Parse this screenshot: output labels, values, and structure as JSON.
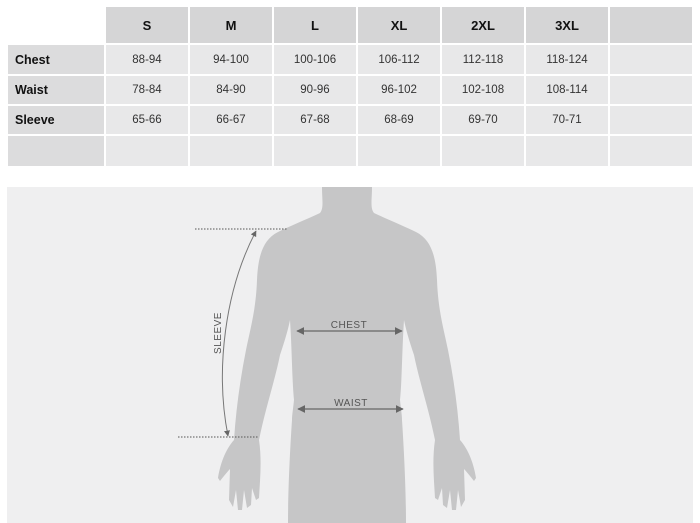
{
  "table": {
    "columns": [
      "S",
      "M",
      "L",
      "XL",
      "2XL",
      "3XL",
      ""
    ],
    "rows": [
      {
        "label": "Chest",
        "values": [
          "88-94",
          "94-100",
          "100-106",
          "106-112",
          "112-118",
          "118-124",
          ""
        ]
      },
      {
        "label": "Waist",
        "values": [
          "78-84",
          "84-90",
          "90-96",
          "96-102",
          "102-108",
          "108-114",
          ""
        ]
      },
      {
        "label": "Sleeve",
        "values": [
          "65-66",
          "66-67",
          "67-68",
          "68-69",
          "69-70",
          "70-71",
          ""
        ]
      },
      {
        "label": "",
        "values": [
          "",
          "",
          "",
          "",
          "",
          "",
          ""
        ]
      }
    ]
  },
  "diagram": {
    "chest_label": "CHEST",
    "waist_label": "WAIST",
    "sleeve_label": "SLEEVE"
  },
  "colors": {
    "silhouette": "#c6c6c7",
    "panel": "#efeff0",
    "header": "#d5d5d6",
    "cell": "#e8e8e9"
  }
}
